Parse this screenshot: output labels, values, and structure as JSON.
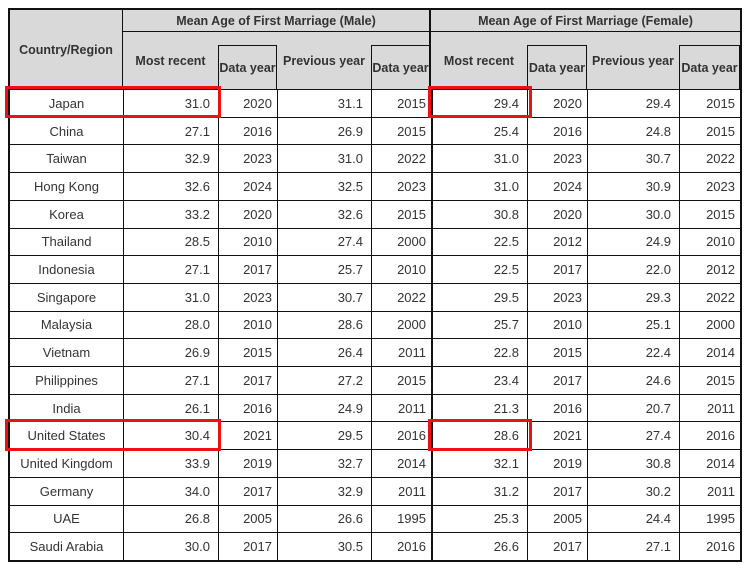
{
  "header": {
    "corner": "Country/Region",
    "groups": [
      {
        "title": "Mean Age of First Marriage (Male)",
        "columns": [
          "Most recent",
          "Data year",
          "Previous year",
          "Data year"
        ]
      },
      {
        "title": "Mean Age of First Marriage (Female)",
        "columns": [
          "Most recent",
          "Data year",
          "Previous year",
          "Data year"
        ]
      }
    ]
  },
  "colors": {
    "header_bg": "#d9d9d9",
    "border": "#111111",
    "text": "#333333",
    "highlight": "#ee1111"
  },
  "annotations": {
    "color": "#ee1111",
    "boxes": [
      {
        "id": "japan-country-and-male-most-recent",
        "row": "Japan",
        "cells": [
          "Country/Region",
          "Male Most recent"
        ]
      },
      {
        "id": "japan-female-most-recent",
        "row": "Japan",
        "cells": [
          "Female Most recent"
        ]
      },
      {
        "id": "united-states-country-and-male-most-recent",
        "row": "United States",
        "cells": [
          "Country/Region",
          "Male Most recent"
        ]
      },
      {
        "id": "united-states-female-most-recent",
        "row": "United States",
        "cells": [
          "Female Most recent"
        ]
      }
    ]
  },
  "chart_data": {
    "type": "table",
    "title": "",
    "column_groups": [
      "Mean Age of First Marriage (Male)",
      "Mean Age of First Marriage (Female)"
    ],
    "columns": [
      "Country/Region",
      "Male Most recent",
      "Male Data year",
      "Male Previous year",
      "Male Previous data year",
      "Female Most recent",
      "Female Data year",
      "Female Previous year",
      "Female Previous data year"
    ],
    "rows": [
      [
        "Japan",
        "31.0",
        "2020",
        "31.1",
        "2015",
        "29.4",
        "2020",
        "29.4",
        "2015"
      ],
      [
        "China",
        "27.1",
        "2016",
        "26.9",
        "2015",
        "25.4",
        "2016",
        "24.8",
        "2015"
      ],
      [
        "Taiwan",
        "32.9",
        "2023",
        "31.0",
        "2022",
        "31.0",
        "2023",
        "30.7",
        "2022"
      ],
      [
        "Hong Kong",
        "32.6",
        "2024",
        "32.5",
        "2023",
        "31.0",
        "2024",
        "30.9",
        "2023"
      ],
      [
        "Korea",
        "33.2",
        "2020",
        "32.6",
        "2015",
        "30.8",
        "2020",
        "30.0",
        "2015"
      ],
      [
        "Thailand",
        "28.5",
        "2010",
        "27.4",
        "2000",
        "22.5",
        "2012",
        "24.9",
        "2010"
      ],
      [
        "Indonesia",
        "27.1",
        "2017",
        "25.7",
        "2010",
        "22.5",
        "2017",
        "22.0",
        "2012"
      ],
      [
        "Singapore",
        "31.0",
        "2023",
        "30.7",
        "2022",
        "29.5",
        "2023",
        "29.3",
        "2022"
      ],
      [
        "Malaysia",
        "28.0",
        "2010",
        "28.6",
        "2000",
        "25.7",
        "2010",
        "25.1",
        "2000"
      ],
      [
        "Vietnam",
        "26.9",
        "2015",
        "26.4",
        "2011",
        "22.8",
        "2015",
        "22.4",
        "2014"
      ],
      [
        "Philippines",
        "27.1",
        "2017",
        "27.2",
        "2015",
        "23.4",
        "2017",
        "24.6",
        "2015"
      ],
      [
        "India",
        "26.1",
        "2016",
        "24.9",
        "2011",
        "21.3",
        "2016",
        "20.7",
        "2011"
      ],
      [
        "United States",
        "30.4",
        "2021",
        "29.5",
        "2016",
        "28.6",
        "2021",
        "27.4",
        "2016"
      ],
      [
        "United Kingdom",
        "33.9",
        "2019",
        "32.7",
        "2014",
        "32.1",
        "2019",
        "30.8",
        "2014"
      ],
      [
        "Germany",
        "34.0",
        "2017",
        "32.9",
        "2011",
        "31.2",
        "2017",
        "30.2",
        "2011"
      ],
      [
        "UAE",
        "26.8",
        "2005",
        "26.6",
        "1995",
        "25.3",
        "2005",
        "24.4",
        "1995"
      ],
      [
        "Saudi Arabia",
        "30.0",
        "2017",
        "30.5",
        "2016",
        "26.6",
        "2017",
        "27.1",
        "2016"
      ]
    ]
  }
}
